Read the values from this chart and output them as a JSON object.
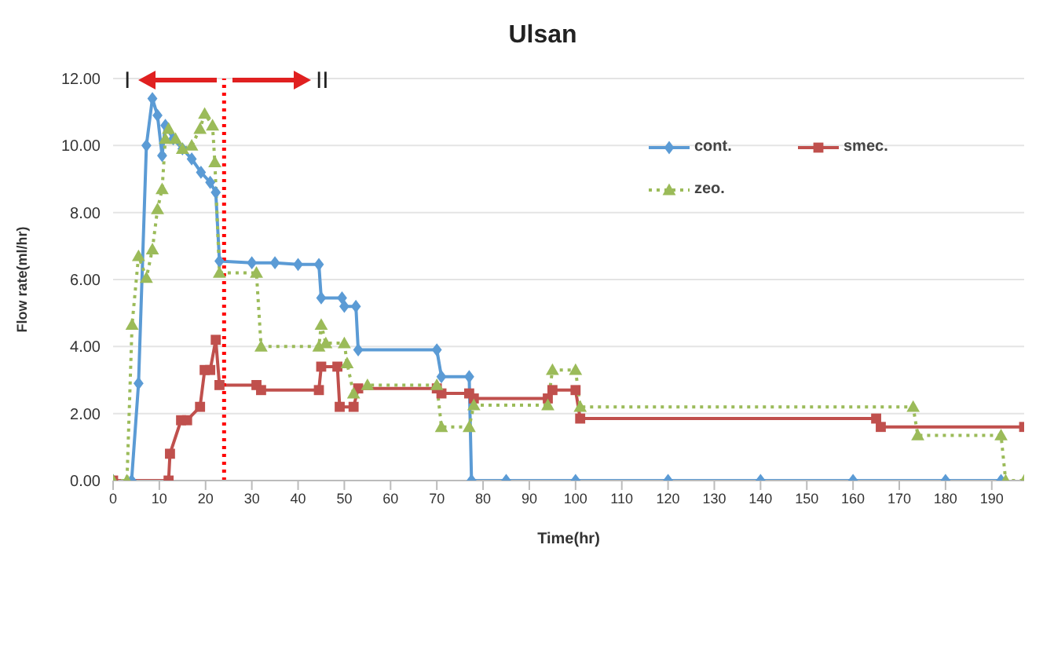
{
  "chart_data": {
    "type": "line",
    "title": "Ulsan",
    "xlabel": "Time(hr)",
    "ylabel": "Flow rate(ml/hr)",
    "xlim": [
      0,
      197
    ],
    "xticks": [
      0,
      10,
      20,
      30,
      40,
      50,
      60,
      70,
      80,
      90,
      100,
      110,
      120,
      130,
      140,
      150,
      160,
      170,
      180,
      190
    ],
    "ylim": [
      0,
      12
    ],
    "yticks": [
      {
        "value": 0,
        "label": "0.00"
      },
      {
        "value": 2,
        "label": "2.00"
      },
      {
        "value": 4,
        "label": "4.00"
      },
      {
        "value": 6,
        "label": "6.00"
      },
      {
        "value": 8,
        "label": "8.00"
      },
      {
        "value": 10,
        "label": "10.00"
      },
      {
        "value": 12,
        "label": "12.00"
      }
    ],
    "grid": "y",
    "legend": "top right",
    "ref_lines": [
      {
        "axis": "x",
        "value": 24,
        "color": "#ff0000",
        "line_style": "dotted"
      }
    ],
    "annotations": [
      "I",
      "II"
    ],
    "series": [
      {
        "name": "cont.",
        "color": "#5b9bd5",
        "marker": "diamond",
        "line_style": "solid",
        "x": [
          0,
          4,
          5.5,
          7.2,
          8.5,
          9.6,
          10.6,
          11.3,
          13,
          15,
          17,
          19,
          21,
          22.2,
          23,
          30,
          35,
          40,
          44.5,
          45,
          49.5,
          50,
          52.5,
          53,
          70,
          71,
          77,
          77.5,
          85,
          100,
          120,
          140,
          160,
          180,
          192
        ],
        "values": [
          0,
          0,
          2.9,
          10.0,
          11.4,
          10.9,
          9.7,
          10.6,
          10.2,
          9.9,
          9.6,
          9.2,
          8.9,
          8.6,
          6.55,
          6.5,
          6.5,
          6.45,
          6.45,
          5.45,
          5.45,
          5.2,
          5.2,
          3.9,
          3.9,
          3.1,
          3.1,
          0,
          0,
          0,
          0,
          0,
          0,
          0,
          0
        ]
      },
      {
        "name": "smec.",
        "color": "#c0504d",
        "marker": "square",
        "line_style": "solid",
        "x": [
          0,
          12,
          12.3,
          14.7,
          16,
          18.8,
          19.8,
          21,
          22.2,
          23,
          31,
          32,
          44.5,
          45,
          48.5,
          49,
          52,
          53,
          70,
          71,
          77,
          78,
          94,
          95,
          100,
          101,
          165,
          166,
          197
        ],
        "values": [
          0,
          0,
          0.8,
          1.8,
          1.8,
          2.2,
          3.3,
          3.3,
          4.2,
          2.85,
          2.85,
          2.7,
          2.7,
          3.4,
          3.4,
          2.2,
          2.2,
          2.75,
          2.75,
          2.6,
          2.6,
          2.45,
          2.45,
          2.7,
          2.7,
          1.85,
          1.85,
          1.6,
          1.6
        ]
      },
      {
        "name": "zeo.",
        "color": "#9bbb59",
        "marker": "triangle",
        "line_style": "dotted",
        "x": [
          0,
          3,
          4.1,
          5.5,
          7.2,
          8.5,
          9.6,
          10.6,
          11.3,
          12,
          13.5,
          15,
          17,
          18.8,
          19.8,
          21.5,
          22,
          23,
          31,
          32,
          44.5,
          45,
          46,
          50,
          50.6,
          52,
          55,
          70,
          71,
          77,
          78,
          94,
          95,
          100,
          101,
          173,
          174,
          192,
          193,
          197
        ],
        "values": [
          0,
          0,
          4.65,
          6.7,
          6.05,
          6.9,
          8.1,
          8.7,
          10.2,
          10.5,
          10.2,
          9.9,
          10.0,
          10.5,
          10.95,
          10.6,
          9.5,
          6.2,
          6.2,
          4.0,
          4.0,
          4.65,
          4.1,
          4.1,
          3.5,
          2.6,
          2.85,
          2.85,
          1.6,
          1.6,
          2.25,
          2.25,
          3.3,
          3.3,
          2.2,
          2.2,
          1.35,
          1.35,
          0,
          0
        ]
      }
    ]
  }
}
